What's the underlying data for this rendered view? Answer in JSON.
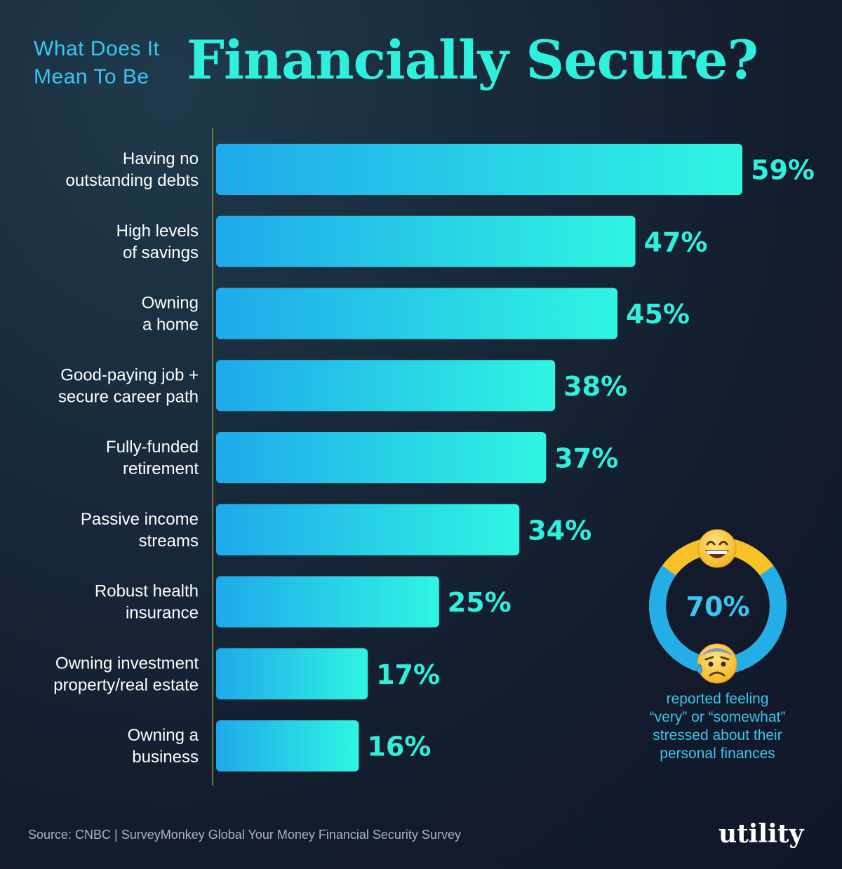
{
  "header": {
    "subtitle_line1": "What Does It",
    "subtitle_line2": "Mean To Be",
    "title": "Financially Secure?"
  },
  "chart_data": {
    "type": "bar",
    "orientation": "horizontal",
    "title": "Financially Secure?",
    "xlabel": "",
    "ylabel": "",
    "xlim": [
      0,
      59
    ],
    "grid": false,
    "categories": [
      [
        "Having no",
        "outstanding debts"
      ],
      [
        "High levels",
        "of savings"
      ],
      [
        "Owning",
        "a home"
      ],
      [
        "Good-paying job +",
        "secure career path"
      ],
      [
        "Fully-funded",
        "retirement"
      ],
      [
        "Passive income",
        "streams"
      ],
      [
        "Robust health",
        "insurance"
      ],
      [
        "Owning investment",
        "property/real estate"
      ],
      [
        "Owning a",
        "business"
      ]
    ],
    "values": [
      59,
      47,
      45,
      38,
      37,
      34,
      25,
      17,
      16
    ],
    "value_labels": [
      "59%",
      "47%",
      "45%",
      "38%",
      "37%",
      "34%",
      "25%",
      "17%",
      "16%"
    ],
    "colors": {
      "bar_start": "#1fa9ea",
      "bar_end": "#2ff5e2",
      "value_label": "#2ff0dc",
      "axis_line": "#6f7a3a"
    }
  },
  "donut": {
    "value": 70,
    "value_label": "70%",
    "top_emoji": "grinning-face-icon",
    "bottom_emoji": "anxious-face-with-sweat-icon",
    "caption": [
      "reported feeling",
      "“very” or “somewhat”",
      "stressed about their",
      "personal finances"
    ],
    "colors": {
      "stressed": "#24aee8",
      "not_stressed": "#f6c227"
    }
  },
  "footer": {
    "source": "Source: CNBC | SurveyMonkey Global Your Money Financial Security Survey",
    "logo": "utility"
  }
}
